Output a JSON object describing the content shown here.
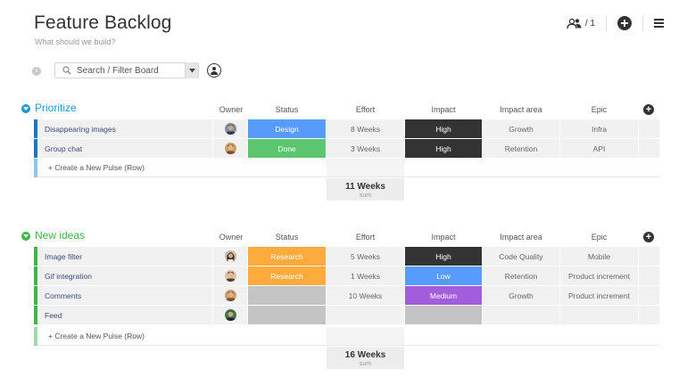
{
  "board": {
    "title": "Feature Backlog",
    "description": "What should we build?"
  },
  "header": {
    "members_count": "/ 1"
  },
  "toolbar": {
    "search_placeholder": "Search / Filter Board"
  },
  "colors": {
    "blue": "#579bfc",
    "green": "#00c875",
    "orange": "#fdab3d",
    "dark": "#333333",
    "purple": "#a25ddc",
    "grey": "#c4c4c4",
    "prioritize_bar": "#1f76c2",
    "new_ideas_bar": "#3fb648"
  },
  "columns": {
    "owner": "Owner",
    "status": "Status",
    "effort": "Effort",
    "impact": "Impact",
    "impact_area": "Impact area",
    "epic": "Epic"
  },
  "groups": [
    {
      "title": "Prioritize",
      "color": "#1f98d6",
      "bar_color": "#1f76c2",
      "new_row_bar": "#8ec5eb",
      "new_row_label": "+ Create a New Pulse (Row)",
      "sum_value": "11 Weeks",
      "sum_label": "sum",
      "rows": [
        {
          "name": "Disappearing images",
          "status": "Design",
          "status_color": "#579bfc",
          "effort": "8 Weeks",
          "impact": "High",
          "impact_color": "#333333",
          "area": "Growth",
          "epic": "Infra",
          "avatar": "m1"
        },
        {
          "name": "Group chat",
          "status": "Done",
          "status_color": "#5bc66f",
          "effort": "3 Weeks",
          "impact": "High",
          "impact_color": "#333333",
          "area": "Retention",
          "epic": "API",
          "avatar": "m2"
        }
      ]
    },
    {
      "title": "New ideas",
      "color": "#3fb648",
      "bar_color": "#3fb648",
      "new_row_bar": "#9fdca5",
      "new_row_label": "+ Create a New Pulse (Row)",
      "sum_value": "16 Weeks",
      "sum_label": "sum",
      "rows": [
        {
          "name": "Image filter",
          "status": "Research",
          "status_color": "#fdab3d",
          "effort": "5 Weeks",
          "impact": "High",
          "impact_color": "#333333",
          "area": "Code Quality",
          "epic": "Mobile",
          "avatar": "f1"
        },
        {
          "name": "Gif integration",
          "status": "Research",
          "status_color": "#fdab3d",
          "effort": "1 Weeks",
          "impact": "Low",
          "impact_color": "#579bfc",
          "area": "Retention",
          "epic": "Product increment",
          "avatar": "m3"
        },
        {
          "name": "Comments",
          "status": "",
          "status_color": "#c4c4c4",
          "effort": "10 Weeks",
          "impact": "Medium",
          "impact_color": "#a25ddc",
          "area": "Growth",
          "epic": "Product increment",
          "avatar": "m2"
        },
        {
          "name": "Feed",
          "status": "",
          "status_color": "#c4c4c4",
          "effort": "",
          "impact": "",
          "impact_color": "#c4c4c4",
          "area": "",
          "epic": "",
          "avatar": "m4"
        }
      ]
    }
  ]
}
